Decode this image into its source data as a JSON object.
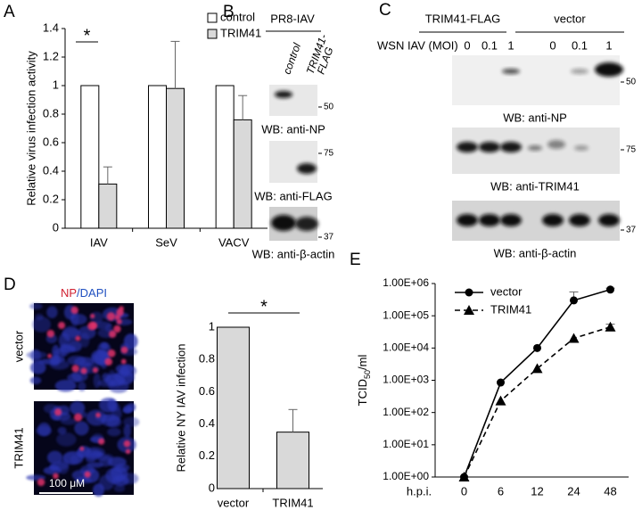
{
  "panel_labels": [
    "A",
    "B",
    "C",
    "D",
    "E"
  ],
  "chart_data": [
    {
      "type": "bar",
      "y_label": "Relative virus infection activity",
      "categories": [
        "IAV",
        "SeV",
        "VACV"
      ],
      "series": [
        {
          "name": "control",
          "color": "#ffffff",
          "values": [
            1,
            1,
            1
          ]
        },
        {
          "name": "TRIM41",
          "color": "#d9d9d9",
          "values": [
            0.31,
            0.98,
            0.76
          ],
          "errors": [
            0.12,
            0.33,
            0.17
          ]
        }
      ],
      "ylim": [
        0,
        1.4
      ],
      "yticks": [
        0,
        0.2,
        0.4,
        0.6,
        0.8,
        1,
        1.2,
        1.4
      ],
      "annotation": "*",
      "legend": "top-right"
    },
    {
      "type": "bar",
      "y_label": "Relative NY IAV infection",
      "categories": [
        "vector",
        "TRIM41"
      ],
      "values": [
        1,
        0.35
      ],
      "errors": [
        null,
        0.14
      ],
      "color": "#d9d9d9",
      "ylim": [
        0,
        1
      ],
      "yticks": [
        0,
        0.2,
        0.4,
        0.6,
        0.8,
        1
      ],
      "annotation": "*"
    },
    {
      "type": "line",
      "y_label": {
        "main": "TCID",
        "sub": "50",
        "rest": "/ml"
      },
      "x_label": "h.p.i.",
      "categories": [
        "0",
        "6",
        "12",
        "24",
        "48"
      ],
      "log_y": true,
      "series": [
        {
          "name": "vector",
          "color": "#000000",
          "marker": "circle",
          "dash": false,
          "values": [
            1,
            850,
            10000,
            300000,
            650000
          ],
          "errors": [
            null,
            null,
            null,
            250000,
            70000
          ]
        },
        {
          "name": "TRIM41",
          "color": "#000000",
          "marker": "triangle",
          "dash": true,
          "values": [
            1,
            230,
            2300,
            20000,
            45000
          ],
          "errors": [
            null,
            null,
            null,
            null,
            10000
          ]
        }
      ],
      "ylim": [
        1,
        1000000
      ],
      "yticks": [
        {
          "value": 1,
          "label": "1.00E+00"
        },
        {
          "value": 10,
          "label": "1.00E+01"
        },
        {
          "value": 100,
          "label": "1.00E+02"
        },
        {
          "value": 1000,
          "label": "1.00E+03"
        },
        {
          "value": 10000,
          "label": "1.00E+04"
        },
        {
          "value": 100000,
          "label": "1.00E+05"
        },
        {
          "value": 1000000,
          "label": "1.00E+06"
        }
      ],
      "legend": "top-left"
    }
  ],
  "blot_b": {
    "header": "PR8-IAV",
    "lanes": [
      [
        "control"
      ],
      [
        "TRIM41-",
        "FLAG"
      ]
    ],
    "panels": [
      {
        "label": "WB: anti-NP",
        "marker": 50
      },
      {
        "label": "WB: anti-FLAG",
        "marker": 75
      },
      {
        "label": "WB: anti-β-actin",
        "marker": 37
      }
    ]
  },
  "blot_c": {
    "groups": [
      "TRIM41-FLAG",
      "vector"
    ],
    "row_label": "WSN IAV (MOI)",
    "lanes": [
      "0",
      "0.1",
      "1",
      "0",
      "0.1",
      "1"
    ],
    "panels": [
      {
        "label": "WB: anti-NP",
        "marker": 50
      },
      {
        "label": "WB: anti-TRIM41",
        "marker": 75
      },
      {
        "label": "WB: anti-β-actin",
        "marker": 37
      }
    ]
  },
  "micrographs": {
    "stain_labels": [
      "NP",
      "/DAPI"
    ],
    "rows": [
      "vector",
      "TRIM41"
    ],
    "scale_bar": "100 μM"
  }
}
